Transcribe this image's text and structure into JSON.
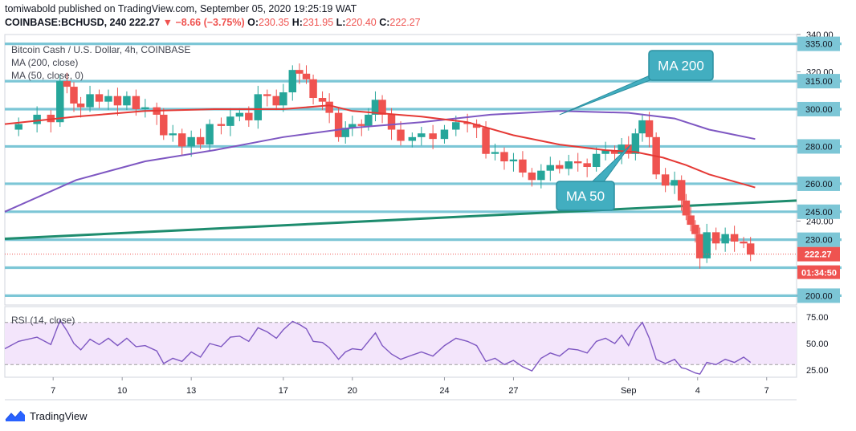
{
  "header": {
    "publisher": "tomiwabold published on TradingView.com, September 05, 2020 19:25:19 WAT",
    "symbol": "COINBASE:BCHUSD, 240",
    "last": "222.27",
    "arrow": "▼",
    "change": "−8.66 (−3.75%)",
    "o_label": "O:",
    "o": "230.35",
    "h_label": "H:",
    "h": "231.95",
    "l_label": "L:",
    "l": "220.40",
    "c_label": "C:",
    "c": "222.27"
  },
  "legend": {
    "title": "Bitcoin Cash / U.S. Dollar, 4h, COINBASE",
    "ma200": "MA (200, close)",
    "ma50": "MA (50, close, 0)",
    "rsi": "RSI (14, close)"
  },
  "footer": {
    "brand": "TradingView"
  },
  "colors": {
    "level": "#7cc6d6",
    "bg": "#ffffff",
    "rsi_band": "#f3e5fb",
    "ma200": "#7e57c2",
    "ma50": "#e53935",
    "trend": "#1e8c6e",
    "up": "#26a69a",
    "down": "#ef5350",
    "callout": "#42aec0"
  },
  "chart_data": {
    "type": "candlestick",
    "price_axis": {
      "min": 195,
      "max": 340,
      "ticks": [
        200,
        240,
        260,
        280,
        300,
        320,
        340
      ]
    },
    "levels": [
      200,
      215,
      230,
      245,
      260,
      280,
      300,
      315,
      335
    ],
    "level_labels": [
      "200.00",
      "230.00",
      "245.00",
      "260.00",
      "280.00",
      "300.00",
      "315.00",
      "335.00"
    ],
    "last_price": {
      "value": 222.27,
      "label": "222.27",
      "countdown": "01:34:50"
    },
    "x_ticks": [
      "7",
      "10",
      "13",
      "17",
      "20",
      "24",
      "27",
      "Sep",
      "4",
      "7"
    ],
    "x_tick_days": [
      7,
      10,
      13,
      17,
      20,
      24,
      27,
      32,
      35,
      38
    ],
    "x_range_days": [
      4.9,
      39.3
    ],
    "trendline": {
      "from": {
        "day": 4.9,
        "value": 230.5
      },
      "to": {
        "day": 39.3,
        "value": 251
      }
    },
    "price_path": [
      [
        4.9,
        289
      ],
      [
        5.5,
        292
      ],
      [
        6.3,
        297
      ],
      [
        6.9,
        293
      ],
      [
        7.3,
        315
      ],
      [
        7.6,
        312
      ],
      [
        7.9,
        303
      ],
      [
        8.2,
        301
      ],
      [
        8.6,
        308
      ],
      [
        9.0,
        304
      ],
      [
        9.4,
        307
      ],
      [
        9.8,
        302
      ],
      [
        10.2,
        307
      ],
      [
        10.6,
        300
      ],
      [
        11.0,
        301
      ],
      [
        11.5,
        297
      ],
      [
        11.8,
        286
      ],
      [
        12.2,
        287
      ],
      [
        12.6,
        280
      ],
      [
        13.0,
        285
      ],
      [
        13.4,
        281
      ],
      [
        13.8,
        292
      ],
      [
        14.3,
        291
      ],
      [
        14.7,
        296
      ],
      [
        15.1,
        298
      ],
      [
        15.5,
        294
      ],
      [
        15.9,
        308
      ],
      [
        16.3,
        307
      ],
      [
        16.7,
        302
      ],
      [
        17.0,
        309
      ],
      [
        17.4,
        321
      ],
      [
        17.7,
        319
      ],
      [
        18.0,
        316
      ],
      [
        18.3,
        306
      ],
      [
        18.7,
        304
      ],
      [
        19.0,
        298
      ],
      [
        19.4,
        285
      ],
      [
        19.7,
        290
      ],
      [
        20.0,
        292
      ],
      [
        20.4,
        291
      ],
      [
        20.7,
        297
      ],
      [
        21.0,
        305
      ],
      [
        21.3,
        297
      ],
      [
        21.7,
        289
      ],
      [
        22.1,
        283
      ],
      [
        22.6,
        285
      ],
      [
        23.0,
        287
      ],
      [
        23.5,
        284
      ],
      [
        24.0,
        289
      ],
      [
        24.5,
        293
      ],
      [
        25.0,
        292
      ],
      [
        25.4,
        290
      ],
      [
        25.8,
        276
      ],
      [
        26.2,
        277
      ],
      [
        26.6,
        272
      ],
      [
        27.0,
        273
      ],
      [
        27.4,
        266
      ],
      [
        27.8,
        262
      ],
      [
        28.2,
        267
      ],
      [
        28.6,
        270
      ],
      [
        29.0,
        268
      ],
      [
        29.4,
        272
      ],
      [
        29.8,
        271
      ],
      [
        30.2,
        269
      ],
      [
        30.6,
        276
      ],
      [
        31.0,
        278
      ],
      [
        31.4,
        276
      ],
      [
        31.7,
        281
      ],
      [
        32.0,
        276
      ],
      [
        32.3,
        287
      ],
      [
        32.6,
        294
      ],
      [
        32.9,
        285
      ],
      [
        33.2,
        265
      ],
      [
        33.6,
        259
      ],
      [
        34.0,
        262
      ],
      [
        34.3,
        251
      ],
      [
        34.5,
        243
      ],
      [
        34.7,
        238
      ],
      [
        34.9,
        233
      ],
      [
        35.1,
        220
      ],
      [
        35.4,
        234
      ],
      [
        35.8,
        228
      ],
      [
        36.2,
        233
      ],
      [
        36.6,
        229
      ],
      [
        37.0,
        228
      ],
      [
        37.3,
        222
      ]
    ],
    "ma200": {
      "name": "MA 200",
      "points": [
        [
          4.9,
          245
        ],
        [
          8,
          262
        ],
        [
          11,
          272
        ],
        [
          14,
          278
        ],
        [
          17,
          285
        ],
        [
          20,
          290
        ],
        [
          23,
          293
        ],
        [
          26,
          297
        ],
        [
          29,
          299
        ],
        [
          32,
          298
        ],
        [
          34,
          295
        ],
        [
          35.5,
          289
        ],
        [
          37.5,
          284
        ]
      ]
    },
    "ma50": {
      "name": "MA 50",
      "points": [
        [
          4.9,
          292
        ],
        [
          8,
          296
        ],
        [
          11,
          299
        ],
        [
          14,
          300
        ],
        [
          17,
          300
        ],
        [
          19,
          302
        ],
        [
          20,
          299
        ],
        [
          23,
          296
        ],
        [
          25,
          293
        ],
        [
          27,
          286
        ],
        [
          29,
          281
        ],
        [
          31,
          278
        ],
        [
          32.3,
          277
        ],
        [
          33.5,
          274
        ],
        [
          34.5,
          270
        ],
        [
          35.5,
          265
        ],
        [
          37.5,
          258
        ]
      ]
    },
    "rsi": {
      "range": [
        18,
        85
      ],
      "ticks": [
        25,
        50,
        75
      ],
      "tick_labels": [
        "25.00",
        "50.00",
        "75.00"
      ],
      "band": [
        30,
        70
      ],
      "points": [
        [
          4.9,
          45
        ],
        [
          5.5,
          52
        ],
        [
          6.3,
          56
        ],
        [
          6.9,
          49
        ],
        [
          7.3,
          72
        ],
        [
          7.6,
          62
        ],
        [
          7.9,
          50
        ],
        [
          8.2,
          44
        ],
        [
          8.6,
          54
        ],
        [
          9.0,
          49
        ],
        [
          9.4,
          55
        ],
        [
          9.8,
          48
        ],
        [
          10.2,
          55
        ],
        [
          10.6,
          47
        ],
        [
          11.0,
          48
        ],
        [
          11.5,
          43
        ],
        [
          11.8,
          31
        ],
        [
          12.2,
          36
        ],
        [
          12.6,
          33
        ],
        [
          13.0,
          42
        ],
        [
          13.4,
          37
        ],
        [
          13.8,
          50
        ],
        [
          14.3,
          47
        ],
        [
          14.7,
          56
        ],
        [
          15.1,
          57
        ],
        [
          15.5,
          52
        ],
        [
          15.9,
          65
        ],
        [
          16.3,
          61
        ],
        [
          16.7,
          55
        ],
        [
          17.0,
          63
        ],
        [
          17.4,
          71
        ],
        [
          17.7,
          68
        ],
        [
          18.0,
          64
        ],
        [
          18.3,
          52
        ],
        [
          18.7,
          51
        ],
        [
          19.0,
          46
        ],
        [
          19.4,
          35
        ],
        [
          19.7,
          42
        ],
        [
          20.0,
          45
        ],
        [
          20.4,
          44
        ],
        [
          20.7,
          52
        ],
        [
          21.0,
          60
        ],
        [
          21.3,
          48
        ],
        [
          21.7,
          40
        ],
        [
          22.1,
          35
        ],
        [
          22.6,
          39
        ],
        [
          23.0,
          42
        ],
        [
          23.5,
          38
        ],
        [
          24.0,
          48
        ],
        [
          24.5,
          55
        ],
        [
          25.0,
          52
        ],
        [
          25.4,
          48
        ],
        [
          25.8,
          33
        ],
        [
          26.2,
          36
        ],
        [
          26.6,
          30
        ],
        [
          27.0,
          34
        ],
        [
          27.4,
          28
        ],
        [
          27.8,
          24
        ],
        [
          28.2,
          36
        ],
        [
          28.6,
          41
        ],
        [
          29.0,
          38
        ],
        [
          29.4,
          45
        ],
        [
          29.8,
          44
        ],
        [
          30.2,
          41
        ],
        [
          30.6,
          52
        ],
        [
          31.0,
          55
        ],
        [
          31.4,
          50
        ],
        [
          31.7,
          58
        ],
        [
          32.0,
          48
        ],
        [
          32.3,
          62
        ],
        [
          32.6,
          70
        ],
        [
          32.9,
          55
        ],
        [
          33.2,
          35
        ],
        [
          33.6,
          31
        ],
        [
          34.0,
          35
        ],
        [
          34.3,
          27
        ],
        [
          34.5,
          26
        ],
        [
          34.7,
          24
        ],
        [
          34.9,
          22
        ],
        [
          35.1,
          21
        ],
        [
          35.4,
          32
        ],
        [
          35.8,
          30
        ],
        [
          36.2,
          35
        ],
        [
          36.6,
          32
        ],
        [
          37.0,
          37
        ],
        [
          37.3,
          32
        ]
      ]
    },
    "annotations": [
      {
        "text": "MA 200"
      },
      {
        "text": "MA 50"
      }
    ]
  }
}
